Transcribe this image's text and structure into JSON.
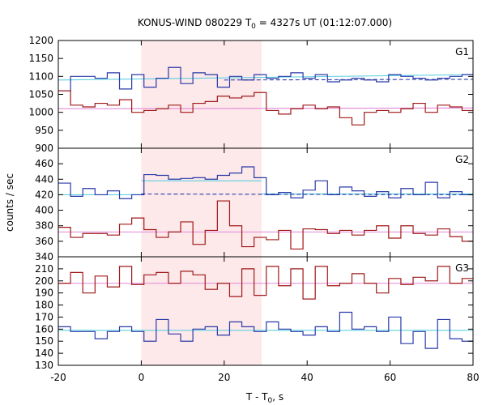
{
  "chart_data": {
    "type": "line",
    "title_parts": [
      "KONUS-WIND 080229 T",
      "0",
      " = 4327s UT (01:12:07.000)"
    ],
    "xlabel_parts": [
      "T - T",
      "0",
      ", s"
    ],
    "ylabel": "counts / sec",
    "xlim": [
      -20,
      80
    ],
    "x_ticks": [
      -20,
      0,
      20,
      40,
      60,
      80
    ],
    "grid": false,
    "highlight_region": {
      "x": [
        0,
        29
      ],
      "color": "#fde8ea"
    },
    "bin_x": [
      -20.0,
      -17.05,
      -14.1,
      -11.15,
      -8.2,
      -5.25,
      -2.3,
      0.65,
      3.6,
      6.55,
      9.5,
      12.45,
      15.4,
      18.35,
      21.3,
      24.25,
      27.2,
      30.15,
      33.1,
      36.05,
      39.0,
      41.95,
      44.9,
      47.85,
      50.8,
      53.75,
      56.7,
      59.65,
      62.6,
      65.55,
      68.5,
      71.45,
      74.4,
      77.35,
      80.0
    ],
    "panels": [
      {
        "label": "G1",
        "ylim": [
          900,
          1200
        ],
        "y_ticks": [
          900,
          950,
          1000,
          1050,
          1100,
          1150,
          1200
        ],
        "series": [
          {
            "color": "#2a3aa8",
            "values": [
              1060,
              1100,
              1100,
              1095,
              1110,
              1065,
              1105,
              1070,
              1095,
              1125,
              1080,
              1110,
              1105,
              1070,
              1100,
              1090,
              1105,
              1095,
              1100,
              1110,
              1095,
              1105,
              1085,
              1090,
              1095,
              1090,
              1085,
              1105,
              1100,
              1095,
              1090,
              1095,
              1100,
              1105
            ]
          },
          {
            "color": "#a01818",
            "values": [
              1060,
              1020,
              1015,
              1025,
              1020,
              1035,
              1000,
              1005,
              1010,
              1020,
              1000,
              1025,
              1030,
              1045,
              1040,
              1045,
              1055,
              1005,
              995,
              1010,
              1020,
              1010,
              1015,
              985,
              965,
              1000,
              1005,
              1000,
              1010,
              1025,
              1000,
              1020,
              1015,
              1005
            ]
          }
        ],
        "fit_lines": [
          {
            "color": "#5fd0e0",
            "style": "solid",
            "y_start": 1090,
            "y_end": 1105,
            "x": [
              -20,
              80
            ]
          },
          {
            "color": "#e08ad8",
            "style": "solid",
            "y_start": 1010,
            "y_end": 1012,
            "x": [
              -20,
              80
            ]
          },
          {
            "color": "#2a3aa8",
            "style": "dashed",
            "y_start": 1090,
            "y_end": 1092,
            "x": [
              20,
              80
            ]
          }
        ]
      },
      {
        "label": "G2",
        "ylim": [
          340,
          480
        ],
        "y_ticks": [
          340,
          360,
          380,
          400,
          420,
          440,
          460
        ],
        "series": [
          {
            "color": "#2a3aa8",
            "values": [
              435,
              418,
              428,
              420,
              425,
              415,
              420,
              446,
              445,
              440,
              441,
              442,
              440,
              445,
              448,
              456,
              442,
              420,
              423,
              416,
              426,
              438,
              420,
              430,
              425,
              418,
              424,
              416,
              428,
              420,
              436,
              416,
              424,
              420
            ]
          },
          {
            "color": "#a01818",
            "values": [
              378,
              365,
              370,
              370,
              368,
              382,
              390,
              375,
              365,
              372,
              385,
              356,
              374,
              412,
              380,
              353,
              365,
              362,
              374,
              350,
              376,
              375,
              370,
              374,
              368,
              374,
              380,
              364,
              380,
              370,
              368,
              376,
              366,
              360
            ]
          }
        ],
        "fit_lines": [
          {
            "color": "#5fd0e0",
            "style": "solid",
            "y_start": 420,
            "y_end": 420,
            "x": [
              -20,
              0
            ]
          },
          {
            "color": "#5fd0e0",
            "style": "solid",
            "y_start": 438,
            "y_end": 438,
            "x": [
              0,
              29
            ]
          },
          {
            "color": "#5fd0e0",
            "style": "solid",
            "y_start": 421,
            "y_end": 421,
            "x": [
              29,
              80
            ]
          },
          {
            "color": "#2a3aa8",
            "style": "dashed",
            "y_start": 421,
            "y_end": 420,
            "x": [
              0,
              80
            ]
          },
          {
            "color": "#e08ad8",
            "style": "solid",
            "y_start": 372,
            "y_end": 372,
            "x": [
              -20,
              80
            ]
          }
        ]
      },
      {
        "label": "G3",
        "ylim": [
          130,
          220
        ],
        "y_ticks": [
          130,
          140,
          150,
          160,
          170,
          180,
          190,
          200,
          210
        ],
        "series": [
          {
            "color": "#2a3aa8",
            "values": [
              162,
              158,
              158,
              152,
              158,
              162,
              158,
              150,
              168,
              156,
              150,
              160,
              162,
              155,
              166,
              162,
              158,
              166,
              160,
              158,
              155,
              162,
              158,
              174,
              160,
              162,
              158,
              170,
              148,
              158,
              144,
              168,
              152,
              150
            ]
          },
          {
            "color": "#a01818",
            "values": [
              198,
              207,
              190,
              204,
              195,
              212,
              197,
              205,
              207,
              198,
              208,
              205,
              193,
              198,
              187,
              210,
              188,
              212,
              196,
              210,
              185,
              212,
              196,
              198,
              206,
              198,
              190,
              202,
              197,
              203,
              200,
              212,
              198,
              202
            ]
          }
        ],
        "fit_lines": [
          {
            "color": "#e08ad8",
            "style": "solid",
            "y_start": 198,
            "y_end": 198,
            "x": [
              -20,
              80
            ]
          },
          {
            "color": "#5fd0e0",
            "style": "solid",
            "y_start": 159,
            "y_end": 159,
            "x": [
              -20,
              80
            ]
          }
        ]
      }
    ]
  }
}
